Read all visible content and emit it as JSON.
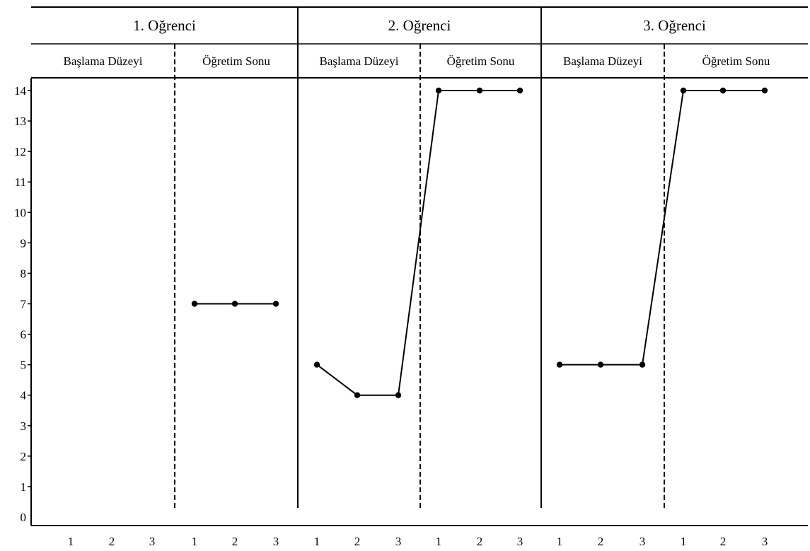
{
  "chart_data": {
    "type": "line",
    "title": "",
    "xlabel": "",
    "ylabel": "",
    "ylim": [
      0,
      14
    ],
    "y_ticks": [
      "0",
      "1",
      "2",
      "3",
      "4",
      "5",
      "6",
      "7",
      "8",
      "9",
      "10",
      "11",
      "12",
      "13",
      "14"
    ],
    "grid": false,
    "legend": "none",
    "phases": [
      "Başlama Düzeyi",
      "Öğretim Sonu"
    ],
    "session_labels": [
      "1",
      "2",
      "3"
    ],
    "students": [
      {
        "name": "1. Oğrenci",
        "baseline": [
          null,
          null,
          null
        ],
        "post": [
          7,
          7,
          7
        ]
      },
      {
        "name": "2. Oğrenci",
        "baseline": [
          5,
          4,
          4
        ],
        "post": [
          14,
          14,
          14
        ]
      },
      {
        "name": "3. Oğrenci",
        "baseline": [
          5,
          5,
          5
        ],
        "post": [
          14,
          14,
          14
        ]
      }
    ]
  }
}
